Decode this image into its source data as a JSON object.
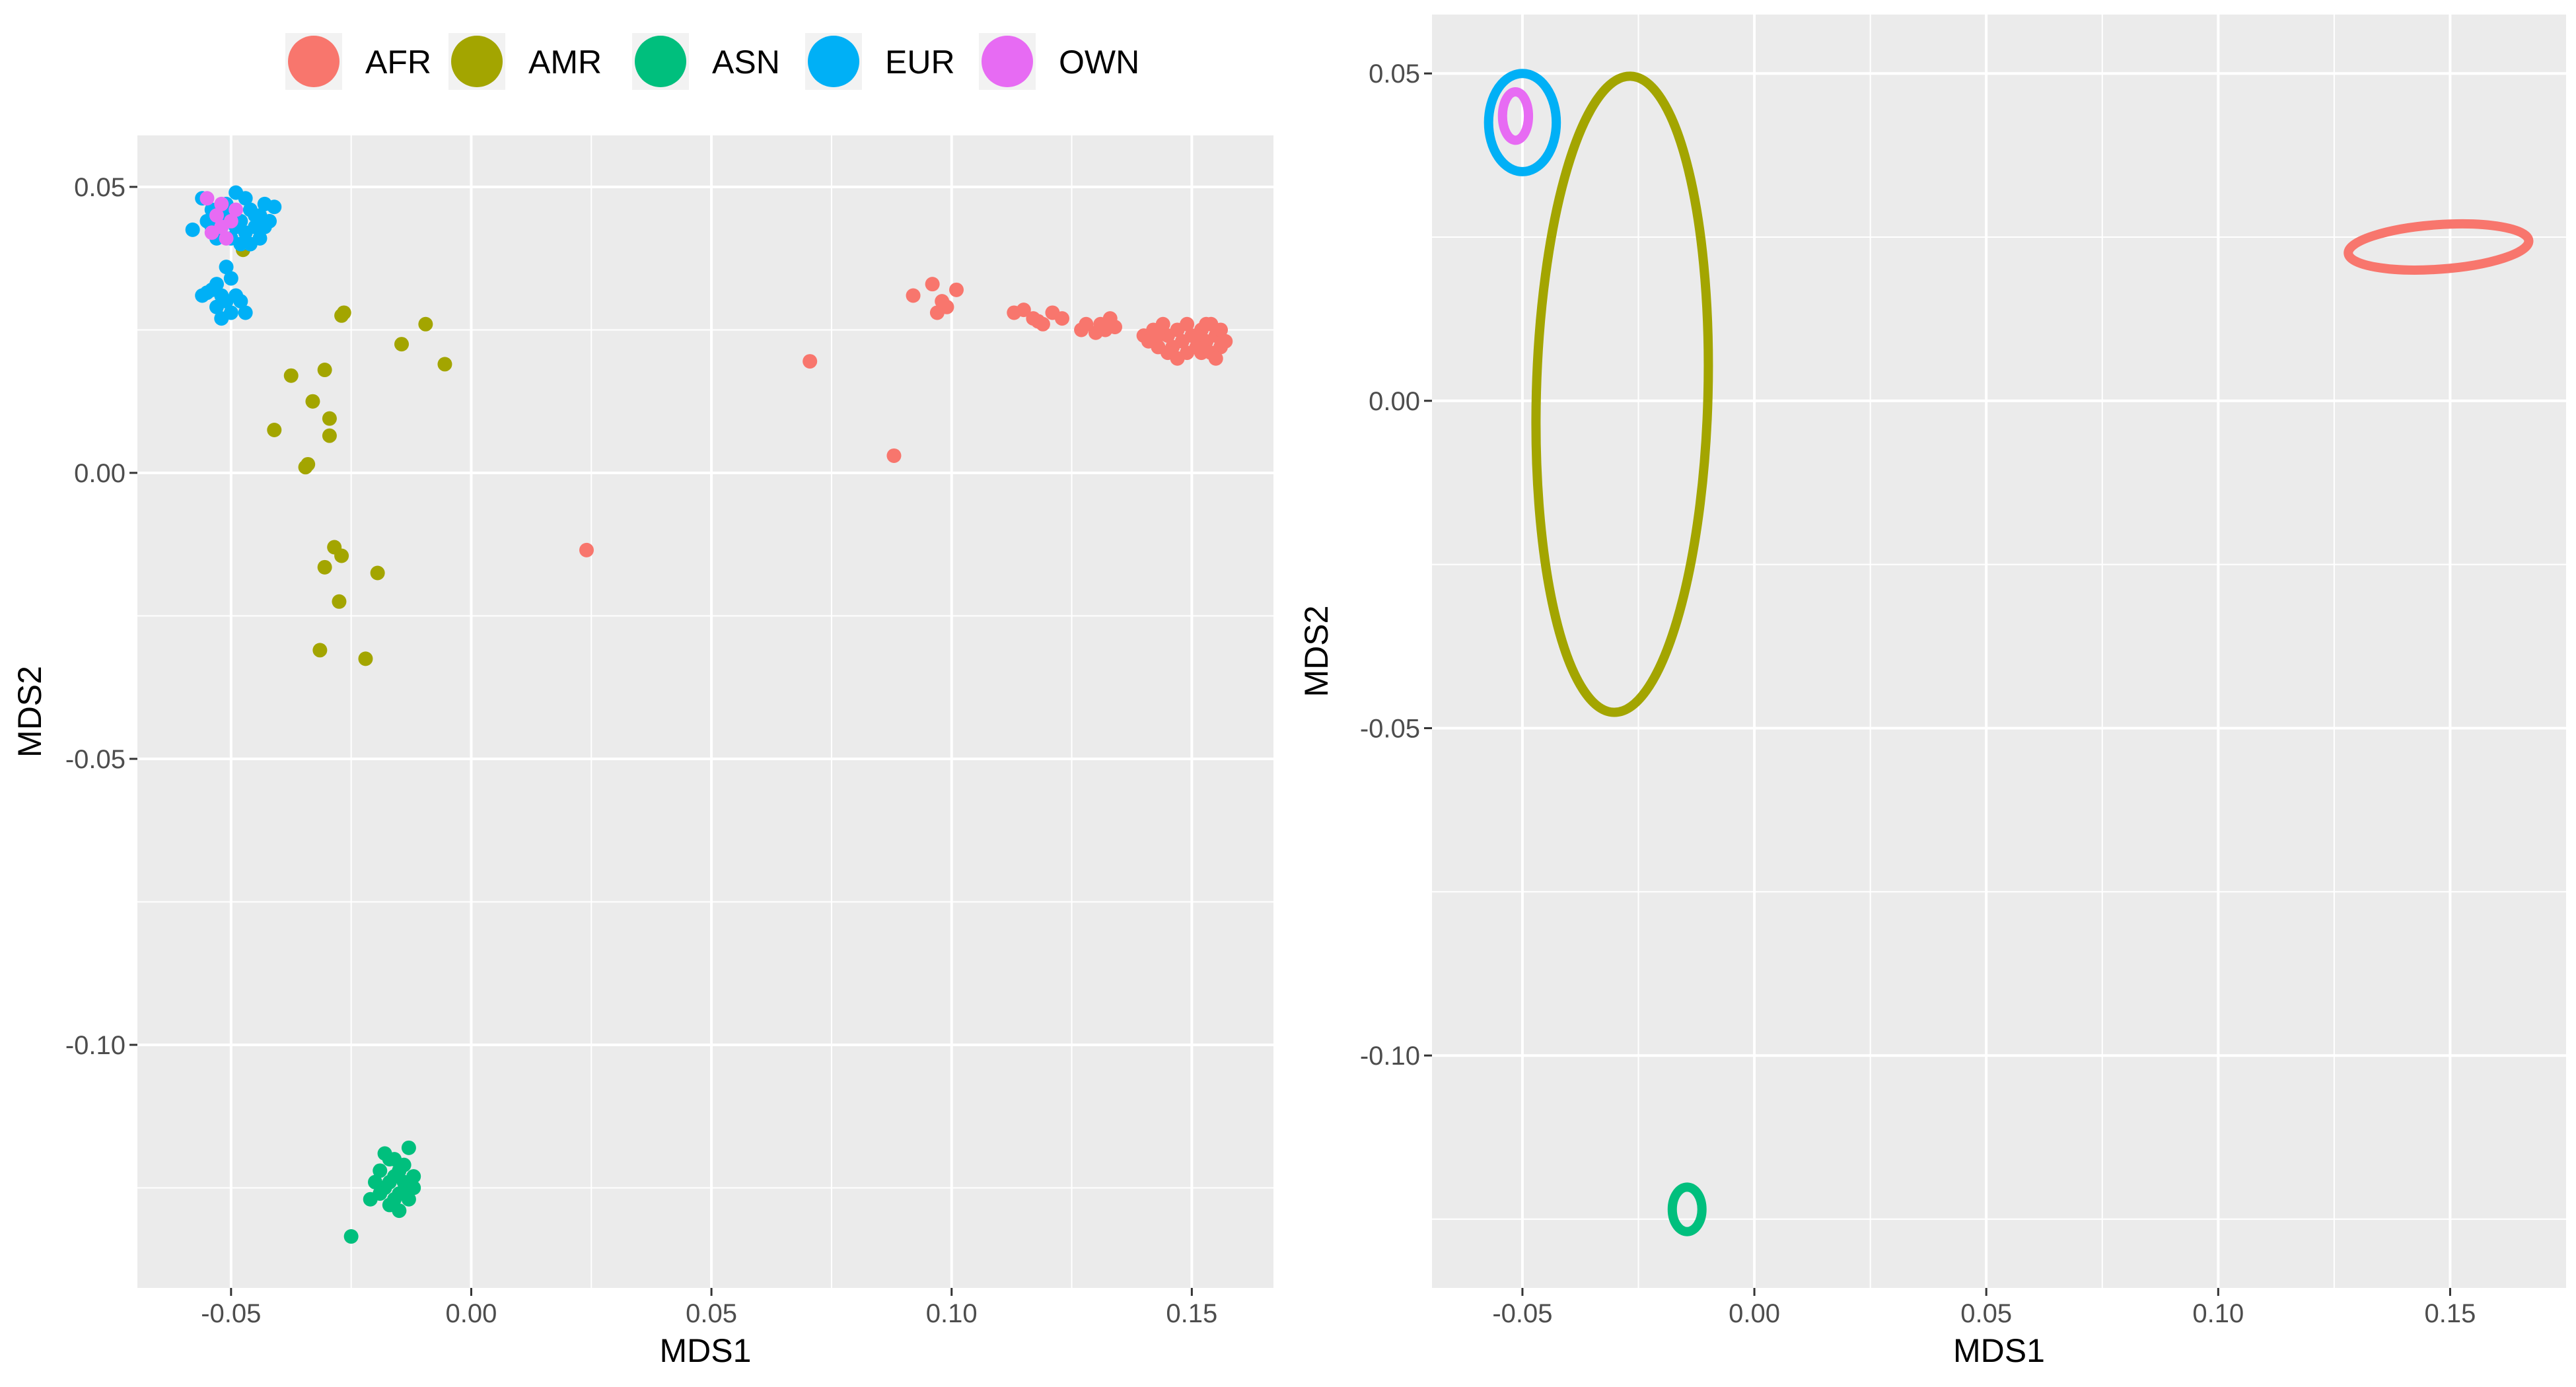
{
  "colors": {
    "AFR": "#F8766D",
    "AMR": "#A3A500",
    "ASN": "#00BF7D",
    "EUR": "#00B0F6",
    "OWN": "#E76BF3",
    "panel_bg": "#EBEBEB",
    "grid": "#FFFFFF"
  },
  "legend": {
    "placement": "top",
    "entries": [
      {
        "key": "AFR",
        "label": "AFR"
      },
      {
        "key": "AMR",
        "label": "AMR"
      },
      {
        "key": "ASN",
        "label": "ASN"
      },
      {
        "key": "EUR",
        "label": "EUR"
      },
      {
        "key": "OWN",
        "label": "OWN"
      }
    ]
  },
  "chart_data": [
    {
      "type": "scatter",
      "xlabel": "MDS1",
      "ylabel": "MDS2",
      "xlim": [
        -0.0695,
        0.167
      ],
      "ylim": [
        -0.1425,
        0.059
      ],
      "xticks": [
        -0.05,
        0.0,
        0.05,
        0.1,
        0.15
      ],
      "xtick_labels": [
        "-0.05",
        "0.00",
        "0.05",
        "0.10",
        "0.15"
      ],
      "yticks": [
        -0.1,
        -0.05,
        0.0,
        0.05
      ],
      "ytick_labels": [
        "-0.10",
        "-0.05",
        "0.00",
        "0.05"
      ],
      "grid": true,
      "series": [
        {
          "key": "AFR",
          "points": [
            [
              0.024,
              -0.0135
            ],
            [
              0.0705,
              0.0195
            ],
            [
              0.088,
              0.003
            ],
            [
              0.092,
              0.031
            ],
            [
              0.096,
              0.033
            ],
            [
              0.097,
              0.028
            ],
            [
              0.099,
              0.029
            ],
            [
              0.101,
              0.032
            ],
            [
              0.098,
              0.03
            ],
            [
              0.113,
              0.028
            ],
            [
              0.115,
              0.0285
            ],
            [
              0.117,
              0.027
            ],
            [
              0.119,
              0.026
            ],
            [
              0.121,
              0.028
            ],
            [
              0.123,
              0.027
            ],
            [
              0.118,
              0.0265
            ],
            [
              0.127,
              0.025
            ],
            [
              0.128,
              0.026
            ],
            [
              0.13,
              0.0245
            ],
            [
              0.131,
              0.026
            ],
            [
              0.132,
              0.025
            ],
            [
              0.133,
              0.027
            ],
            [
              0.134,
              0.0255
            ],
            [
              0.14,
              0.024
            ],
            [
              0.141,
              0.023
            ],
            [
              0.142,
              0.025
            ],
            [
              0.143,
              0.022
            ],
            [
              0.144,
              0.026
            ],
            [
              0.145,
              0.024
            ],
            [
              0.146,
              0.022
            ],
            [
              0.147,
              0.025
            ],
            [
              0.148,
              0.023
            ],
            [
              0.149,
              0.021
            ],
            [
              0.15,
              0.024
            ],
            [
              0.145,
              0.021
            ],
            [
              0.143,
              0.024
            ],
            [
              0.147,
              0.02
            ],
            [
              0.151,
              0.022
            ],
            [
              0.152,
              0.025
            ],
            [
              0.153,
              0.023
            ],
            [
              0.154,
              0.026
            ],
            [
              0.155,
              0.024
            ],
            [
              0.156,
              0.022
            ],
            [
              0.152,
              0.021
            ],
            [
              0.154,
              0.021
            ],
            [
              0.156,
              0.025
            ],
            [
              0.153,
              0.026
            ],
            [
              0.157,
              0.023
            ],
            [
              0.155,
              0.02
            ],
            [
              0.151,
              0.024
            ],
            [
              0.149,
              0.026
            ]
          ]
        },
        {
          "key": "AMR",
          "points": [
            [
              -0.0475,
              0.039
            ],
            [
              -0.027,
              0.0275
            ],
            [
              -0.0265,
              0.028
            ],
            [
              -0.0145,
              0.0225
            ],
            [
              -0.0095,
              0.026
            ],
            [
              -0.0055,
              0.019
            ],
            [
              -0.0375,
              0.017
            ],
            [
              -0.0305,
              0.018
            ],
            [
              -0.033,
              0.0125
            ],
            [
              -0.0295,
              0.0095
            ],
            [
              -0.041,
              0.0075
            ],
            [
              -0.0295,
              0.0065
            ],
            [
              -0.034,
              0.0015
            ],
            [
              -0.0345,
              0.001
            ],
            [
              -0.0285,
              -0.013
            ],
            [
              -0.027,
              -0.0145
            ],
            [
              -0.0305,
              -0.0165
            ],
            [
              -0.0195,
              -0.0175
            ],
            [
              -0.0275,
              -0.0225
            ],
            [
              -0.0315,
              -0.031
            ],
            [
              -0.022,
              -0.0325
            ]
          ]
        },
        {
          "key": "ASN",
          "points": [
            [
              -0.025,
              -0.1335
            ],
            [
              -0.021,
              -0.127
            ],
            [
              -0.02,
              -0.124
            ],
            [
              -0.019,
              -0.122
            ],
            [
              -0.018,
              -0.125
            ],
            [
              -0.017,
              -0.12
            ],
            [
              -0.016,
              -0.123
            ],
            [
              -0.015,
              -0.126
            ],
            [
              -0.014,
              -0.121
            ],
            [
              -0.013,
              -0.118
            ],
            [
              -0.014,
              -0.124
            ],
            [
              -0.016,
              -0.127
            ],
            [
              -0.017,
              -0.128
            ],
            [
              -0.015,
              -0.129
            ],
            [
              -0.013,
              -0.127
            ],
            [
              -0.012,
              -0.125
            ],
            [
              -0.018,
              -0.119
            ],
            [
              -0.019,
              -0.126
            ],
            [
              -0.015,
              -0.122
            ],
            [
              -0.016,
              -0.12
            ],
            [
              -0.014,
              -0.126
            ],
            [
              -0.012,
              -0.123
            ],
            [
              -0.017,
              -0.124
            ]
          ]
        },
        {
          "key": "EUR",
          "points": [
            [
              -0.058,
              0.0425
            ],
            [
              -0.056,
              0.048
            ],
            [
              -0.055,
              0.044
            ],
            [
              -0.054,
              0.046
            ],
            [
              -0.053,
              0.041
            ],
            [
              -0.052,
              0.043
            ],
            [
              -0.051,
              0.047
            ],
            [
              -0.05,
              0.045
            ],
            [
              -0.049,
              0.049
            ],
            [
              -0.048,
              0.044
            ],
            [
              -0.047,
              0.042
            ],
            [
              -0.046,
              0.046
            ],
            [
              -0.045,
              0.043
            ],
            [
              -0.044,
              0.045
            ],
            [
              -0.043,
              0.047
            ],
            [
              -0.042,
              0.044
            ],
            [
              -0.041,
              0.0465
            ],
            [
              -0.048,
              0.04
            ],
            [
              -0.05,
              0.041
            ],
            [
              -0.046,
              0.04
            ],
            [
              -0.044,
              0.041
            ],
            [
              -0.052,
              0.046
            ],
            [
              -0.054,
              0.043
            ],
            [
              -0.047,
              0.048
            ],
            [
              -0.045,
              0.045
            ],
            [
              -0.043,
              0.043
            ],
            [
              -0.049,
              0.043
            ],
            [
              -0.051,
              0.044
            ],
            [
              -0.056,
              0.031
            ],
            [
              -0.055,
              0.0315
            ],
            [
              -0.054,
              0.032
            ],
            [
              -0.053,
              0.029
            ],
            [
              -0.052,
              0.027
            ],
            [
              -0.051,
              0.03
            ],
            [
              -0.05,
              0.034
            ],
            [
              -0.049,
              0.031
            ],
            [
              -0.048,
              0.03
            ],
            [
              -0.047,
              0.028
            ],
            [
              -0.053,
              0.033
            ],
            [
              -0.051,
              0.036
            ],
            [
              -0.05,
              0.028
            ],
            [
              -0.052,
              0.031
            ]
          ]
        },
        {
          "key": "OWN",
          "points": [
            [
              -0.055,
              0.048
            ],
            [
              -0.054,
              0.042
            ],
            [
              -0.053,
              0.045
            ],
            [
              -0.052,
              0.047
            ],
            [
              -0.051,
              0.041
            ],
            [
              -0.05,
              0.044
            ],
            [
              -0.052,
              0.043
            ],
            [
              -0.049,
              0.046
            ]
          ]
        }
      ]
    },
    {
      "type": "ellipse",
      "xlabel": "MDS1",
      "ylabel": "MDS2",
      "xlim": [
        -0.0695,
        0.175
      ],
      "ylim": [
        -0.1355,
        0.059
      ],
      "xticks": [
        -0.05,
        0.0,
        0.05,
        0.1,
        0.15
      ],
      "xtick_labels": [
        "-0.05",
        "0.00",
        "0.05",
        "0.10",
        "0.15"
      ],
      "yticks": [
        -0.1,
        -0.05,
        0.0,
        0.05
      ],
      "ytick_labels": [
        "-0.10",
        "-0.05",
        "0.00",
        "0.05"
      ],
      "grid": true,
      "ellipses": [
        {
          "key": "AFR",
          "cx": 0.1475,
          "cy": 0.0235,
          "rx": 0.0195,
          "ry": 0.0034,
          "angle": -4
        },
        {
          "key": "AMR",
          "cx": -0.0285,
          "cy": 0.001,
          "rx": 0.0185,
          "ry": 0.0486,
          "angle": 1.5
        },
        {
          "key": "ASN",
          "cx": -0.0145,
          "cy": -0.1235,
          "rx": 0.0032,
          "ry": 0.0034,
          "angle": 0
        },
        {
          "key": "EUR",
          "cx": -0.05,
          "cy": 0.0425,
          "rx": 0.0073,
          "ry": 0.0075,
          "angle": 0
        },
        {
          "key": "OWN",
          "cx": -0.0515,
          "cy": 0.0435,
          "rx": 0.0028,
          "ry": 0.0037,
          "angle": 0
        }
      ]
    }
  ]
}
